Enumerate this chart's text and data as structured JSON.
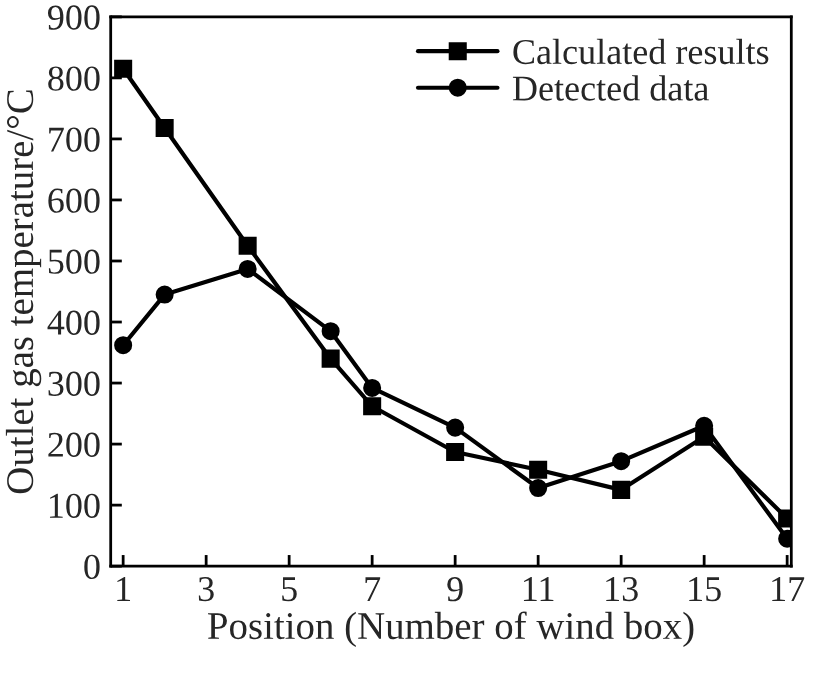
{
  "chart_data": {
    "type": "line",
    "xlabel": "Position (Number of wind box)",
    "ylabel": "Outlet gas temperature/°C",
    "xlim": [
      0.7,
      17.1
    ],
    "xticks": [
      1,
      3,
      5,
      7,
      9,
      11,
      13,
      15,
      17
    ],
    "ylim": [
      0,
      900
    ],
    "yticks": [
      0,
      100,
      200,
      300,
      400,
      500,
      600,
      700,
      800,
      900
    ],
    "grid": false,
    "legend": "top right",
    "line_style": "solid",
    "series": [
      {
        "name": "Calculated results",
        "color": "#000000",
        "marker": "square",
        "x": [
          1,
          2,
          4,
          6,
          7,
          9,
          11,
          13,
          15,
          17
        ],
        "values": [
          815,
          718,
          525,
          340,
          262,
          187,
          158,
          125,
          212,
          78
        ]
      },
      {
        "name": "Detected data",
        "color": "#000000",
        "marker": "circle",
        "x": [
          1,
          2,
          4,
          6,
          7,
          9,
          11,
          13,
          15,
          17
        ],
        "values": [
          362,
          445,
          487,
          385,
          292,
          227,
          128,
          172,
          230,
          45
        ]
      }
    ]
  }
}
